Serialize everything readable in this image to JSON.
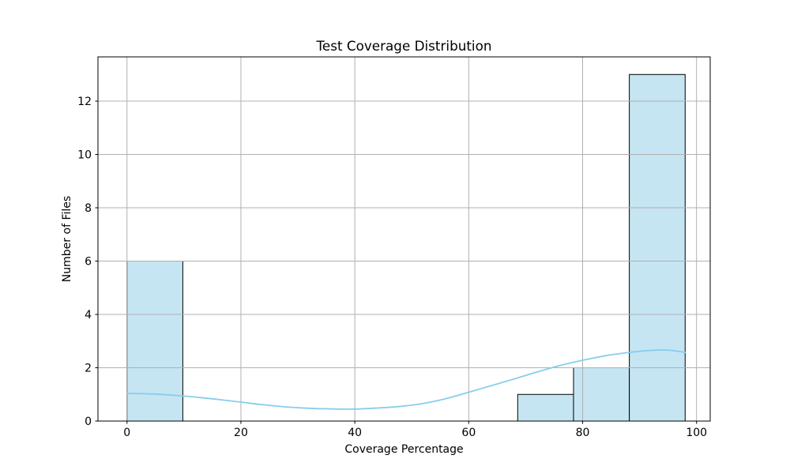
{
  "chart_data": {
    "type": "bar",
    "subtype": "histogram-with-kde",
    "title": "Test Coverage Distribution",
    "xlabel": "Coverage Percentage",
    "ylabel": "Number of Files",
    "bin_edges": [
      0,
      9.8,
      19.6,
      29.4,
      39.2,
      49.0,
      58.8,
      68.6,
      78.4,
      88.2,
      98.0
    ],
    "counts": [
      6,
      0,
      0,
      0,
      0,
      0,
      0,
      1,
      2,
      13
    ],
    "kde_line": {
      "x": [
        0,
        4,
        8,
        12,
        16,
        20,
        24,
        28,
        32,
        36,
        40,
        44,
        48,
        52,
        56,
        60,
        64,
        68,
        72,
        76,
        80,
        84,
        88,
        92,
        95,
        98
      ],
      "y": [
        1.04,
        1.02,
        0.97,
        0.9,
        0.81,
        0.71,
        0.61,
        0.53,
        0.48,
        0.455,
        0.45,
        0.49,
        0.55,
        0.66,
        0.84,
        1.08,
        1.33,
        1.58,
        1.84,
        2.08,
        2.28,
        2.45,
        2.57,
        2.65,
        2.66,
        2.58
      ]
    },
    "x_ticks": [
      0,
      20,
      40,
      60,
      80,
      100
    ],
    "y_ticks": [
      0,
      2,
      4,
      6,
      8,
      10,
      12
    ],
    "xlim": [
      -5.1,
      102.4
    ],
    "ylim": [
      0,
      13.66
    ],
    "grid": true,
    "grid_above_bars": true,
    "legend": "none",
    "colors": {
      "bar_fill": "#c5e5f3",
      "bar_edge": "#000000",
      "kde_line": "#87ceeb",
      "grid": "#b0b0b0",
      "spine": "#000000",
      "tick": "#000000",
      "text": "#000000",
      "background": "#ffffff"
    }
  }
}
